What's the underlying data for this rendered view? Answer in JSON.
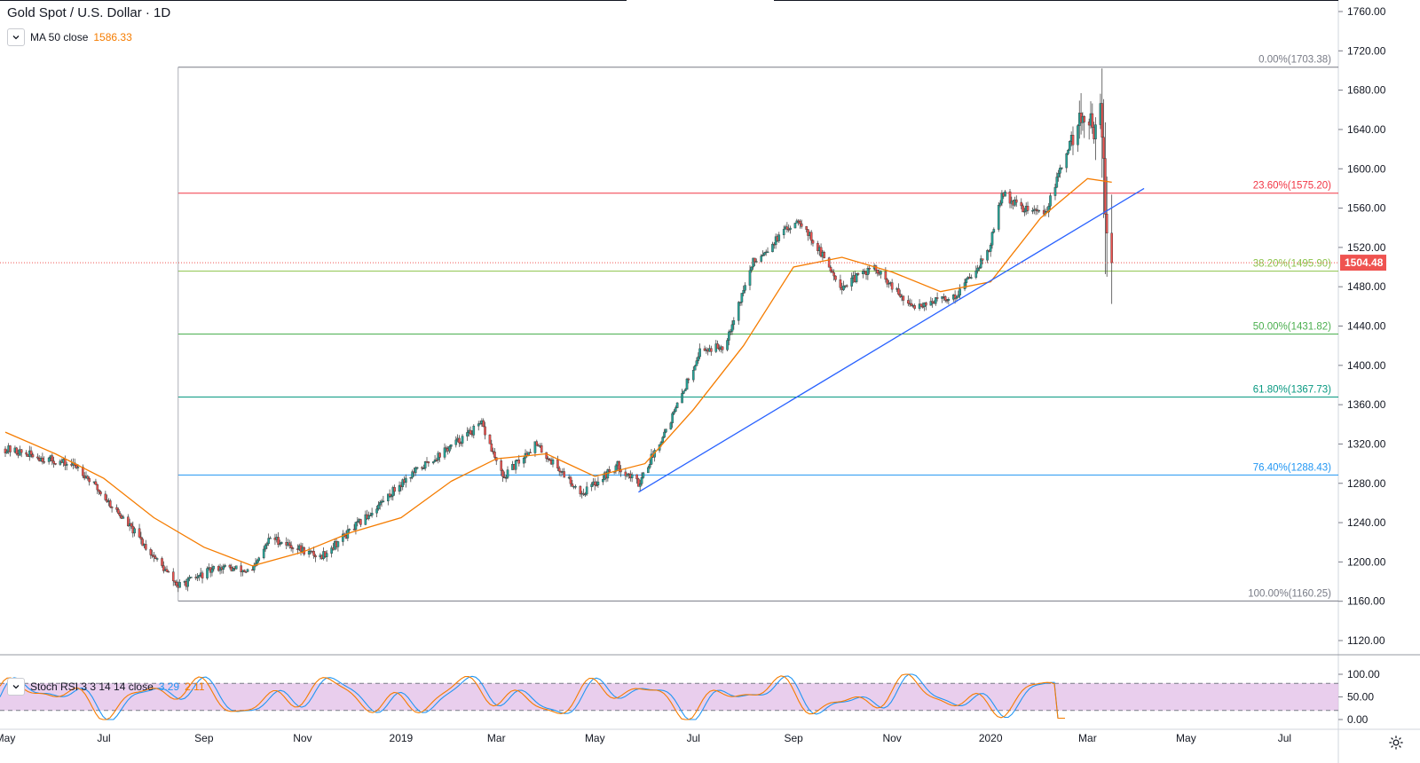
{
  "header": {
    "symbol": "Gold Spot / U.S. Dollar · 1D",
    "ma_label": "MA 50 close",
    "ma_value": "1586.33",
    "stoch_label": "Stoch RSI 3 3 14 14 close",
    "stoch_k": "3.29",
    "stoch_d": "2.11"
  },
  "colors": {
    "up": "#26a69a",
    "down": "#ef5350",
    "ma": "#f57c00",
    "trendline": "#2962ff",
    "stoch_k": "#2196f3",
    "stoch_d": "#f57c00",
    "stoch_band": "#e1bee7",
    "price_tag": "#ef5350"
  },
  "chart_data": [
    {
      "type": "candlestick",
      "title": "Gold Spot / U.S. Dollar · 1D",
      "x_range": [
        "2018-05-01",
        "2020-07-31"
      ],
      "ylim": [
        1100,
        1770
      ],
      "y_ticks": [
        1120,
        1160,
        1200,
        1240,
        1280,
        1320,
        1360,
        1400,
        1440,
        1480,
        1520,
        1560,
        1600,
        1640,
        1680,
        1720,
        1760
      ],
      "y_tick_labels": [
        "1120.00",
        "1160.00",
        "1200.00",
        "1240.00",
        "1280.00",
        "1320.00",
        "1360.00",
        "1400.00",
        "1440.00",
        "1480.00",
        "1520.00",
        "1560.00",
        "1600.00",
        "1640.00",
        "1680.00",
        "1720.00",
        "1760.00"
      ],
      "x_tick_dates": [
        "2018-05-01",
        "2018-07-01",
        "2018-09-01",
        "2018-11-01",
        "2019-01-01",
        "2019-03-01",
        "2019-05-01",
        "2019-07-01",
        "2019-09-01",
        "2019-11-01",
        "2020-01-01",
        "2020-03-01",
        "2020-05-01",
        "2020-07-01"
      ],
      "x_tick_labels": [
        "May",
        "Jul",
        "Sep",
        "Nov",
        "2019",
        "Mar",
        "May",
        "Jul",
        "Sep",
        "Nov",
        "2020",
        "Mar",
        "May",
        "Jul"
      ],
      "price_path": [
        [
          "2018-05-01",
          1315
        ],
        [
          "2018-06-15",
          1297
        ],
        [
          "2018-07-15",
          1240
        ],
        [
          "2018-08-16",
          1175
        ],
        [
          "2018-09-10",
          1195
        ],
        [
          "2018-10-01",
          1190
        ],
        [
          "2018-10-12",
          1225
        ],
        [
          "2018-11-12",
          1205
        ],
        [
          "2018-12-10",
          1245
        ],
        [
          "2019-01-04",
          1285
        ],
        [
          "2019-02-20",
          1340
        ],
        [
          "2019-03-05",
          1285
        ],
        [
          "2019-03-25",
          1320
        ],
        [
          "2019-04-23",
          1270
        ],
        [
          "2019-05-15",
          1298
        ],
        [
          "2019-05-28",
          1280
        ],
        [
          "2019-06-20",
          1355
        ],
        [
          "2019-07-05",
          1415
        ],
        [
          "2019-07-20",
          1420
        ],
        [
          "2019-08-07",
          1505
        ],
        [
          "2019-09-04",
          1550
        ],
        [
          "2019-10-01",
          1480
        ],
        [
          "2019-10-20",
          1500
        ],
        [
          "2019-11-12",
          1460
        ],
        [
          "2019-12-10",
          1470
        ],
        [
          "2019-12-31",
          1517
        ],
        [
          "2020-01-08",
          1575
        ],
        [
          "2020-01-20",
          1560
        ],
        [
          "2020-02-04",
          1555
        ],
        [
          "2020-02-24",
          1650
        ],
        [
          "2020-03-04",
          1640
        ],
        [
          "2020-03-09",
          1675
        ],
        [
          "2020-03-13",
          1525
        ],
        [
          "2020-03-16",
          1504.48
        ]
      ],
      "last_price": "1504.48",
      "ma50_path": [
        [
          "2018-05-01",
          1332
        ],
        [
          "2018-06-01",
          1310
        ],
        [
          "2018-07-01",
          1285
        ],
        [
          "2018-08-01",
          1245
        ],
        [
          "2018-09-01",
          1215
        ],
        [
          "2018-10-01",
          1196
        ],
        [
          "2018-11-01",
          1210
        ],
        [
          "2018-12-01",
          1230
        ],
        [
          "2019-01-01",
          1245
        ],
        [
          "2019-02-01",
          1282
        ],
        [
          "2019-03-01",
          1305
        ],
        [
          "2019-04-01",
          1310
        ],
        [
          "2019-05-01",
          1287
        ],
        [
          "2019-06-01",
          1300
        ],
        [
          "2019-07-01",
          1355
        ],
        [
          "2019-08-01",
          1420
        ],
        [
          "2019-09-01",
          1500
        ],
        [
          "2019-10-01",
          1510
        ],
        [
          "2019-11-01",
          1495
        ],
        [
          "2019-12-01",
          1475
        ],
        [
          "2020-01-01",
          1485
        ],
        [
          "2020-02-01",
          1550
        ],
        [
          "2020-03-01",
          1590
        ],
        [
          "2020-03-16",
          1586.33
        ]
      ],
      "trendline": [
        [
          "2019-05-28",
          1271
        ],
        [
          "2020-04-05",
          1580
        ]
      ],
      "fibonacci": {
        "x_start": "2018-08-16",
        "levels": [
          {
            "label": "0.00%(1703.38)",
            "value": 1703.38,
            "color": "#787b86"
          },
          {
            "label": "23.60%(1575.20)",
            "value": 1575.2,
            "color": "#f23645"
          },
          {
            "label": "38.20%(1495.90)",
            "value": 1495.9,
            "color": "#8bc34a"
          },
          {
            "label": "50.00%(1431.82)",
            "value": 1431.82,
            "color": "#4caf50"
          },
          {
            "label": "61.80%(1367.73)",
            "value": 1367.73,
            "color": "#089981"
          },
          {
            "label": "76.40%(1288.43)",
            "value": 1288.43,
            "color": "#2196f3"
          },
          {
            "label": "100.00%(1160.25)",
            "value": 1160.25,
            "color": "#787b86"
          }
        ]
      }
    },
    {
      "type": "line",
      "title": "Stoch RSI 3 3 14 14 close",
      "ylim": [
        0,
        100
      ],
      "y_ticks": [
        0,
        50,
        100
      ],
      "y_tick_labels": [
        "0.00",
        "50.00",
        "100.00"
      ],
      "bands": [
        20,
        80
      ],
      "series": [
        {
          "name": "K",
          "last": 3.29
        },
        {
          "name": "D",
          "last": 2.11
        }
      ]
    }
  ]
}
